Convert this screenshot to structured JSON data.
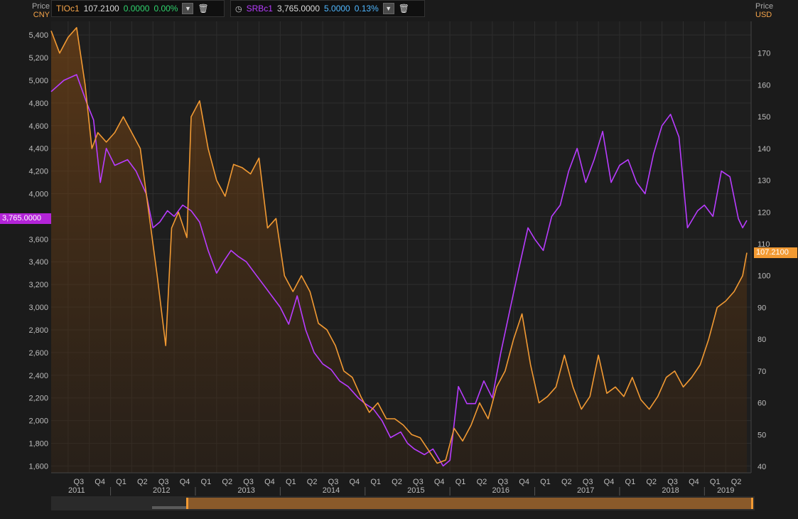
{
  "legend": [
    {
      "name": "TIOc1",
      "price": "107.2100",
      "change": "0.0000",
      "pct": "0.00%",
      "color": "#f7a54a",
      "change_color": "#2fd36e"
    },
    {
      "name": "SRBc1",
      "price": "3,765.0000",
      "change": "5.0000",
      "pct": "0.13%",
      "color": "#b83cff",
      "change_color": "#4fb7ff"
    }
  ],
  "axis_headers": {
    "left": {
      "title": "Price",
      "unit": "CNY"
    },
    "right": {
      "title": "Price",
      "unit": "USD"
    }
  },
  "last_tags": {
    "left": "3,765.0000",
    "right": "107.2100"
  },
  "colors": {
    "background": "#1b1b1b",
    "srb": "#b83cff",
    "tio": "#f29a33",
    "grid": "#2e2e2e"
  },
  "chart_data": {
    "type": "line",
    "title": "",
    "x_ticks": {
      "quarters": [
        "Q3",
        "Q4",
        "Q1",
        "Q2",
        "Q3",
        "Q4",
        "Q1",
        "Q2",
        "Q3",
        "Q4",
        "Q1",
        "Q2",
        "Q3",
        "Q4",
        "Q1",
        "Q2",
        "Q3",
        "Q4",
        "Q1",
        "Q2",
        "Q3",
        "Q4",
        "Q1",
        "Q2",
        "Q3",
        "Q4",
        "Q1",
        "Q2",
        "Q3",
        "Q4",
        "Q1",
        "Q2"
      ],
      "quarter_dates": [
        2011.5,
        2011.75,
        2012.0,
        2012.25,
        2012.5,
        2012.75,
        2013.0,
        2013.25,
        2013.5,
        2013.75,
        2014.0,
        2014.25,
        2014.5,
        2014.75,
        2015.0,
        2015.25,
        2015.5,
        2015.75,
        2016.0,
        2016.25,
        2016.5,
        2016.75,
        2017.0,
        2017.25,
        2017.5,
        2017.75,
        2018.0,
        2018.25,
        2018.5,
        2018.75,
        2019.0,
        2019.25
      ],
      "years": [
        "2011",
        "2012",
        "2013",
        "2014",
        "2015",
        "2016",
        "2017",
        "2018",
        "2019"
      ],
      "year_dates": [
        2011.6,
        2012.6,
        2013.6,
        2014.6,
        2015.6,
        2016.6,
        2017.6,
        2018.6,
        2019.25
      ]
    },
    "x_range": [
      2011.3,
      2019.55
    ],
    "y_left": {
      "unit": "CNY",
      "range": [
        1540,
        5520
      ],
      "ticks": [
        "1,600",
        "1,800",
        "2,000",
        "2,200",
        "2,400",
        "2,600",
        "2,800",
        "3,000",
        "3,200",
        "3,400",
        "3,600",
        "3,800",
        "4,000",
        "4,200",
        "4,400",
        "4,600",
        "4,800",
        "5,000",
        "5,200",
        "5,400"
      ]
    },
    "y_right": {
      "unit": "USD",
      "range": [
        38,
        180
      ],
      "ticks": [
        "40",
        "50",
        "60",
        "70",
        "80",
        "90",
        "100",
        "110",
        "120",
        "130",
        "140",
        "150",
        "160",
        "170"
      ]
    },
    "grid": true,
    "series": [
      {
        "name": "SRBc1",
        "axis": "left",
        "color": "#b83cff",
        "x": [
          2011.3,
          2011.45,
          2011.6,
          2011.72,
          2011.8,
          2011.88,
          2011.95,
          2012.05,
          2012.2,
          2012.3,
          2012.42,
          2012.5,
          2012.58,
          2012.67,
          2012.75,
          2012.85,
          2012.95,
          2013.05,
          2013.15,
          2013.25,
          2013.33,
          2013.42,
          2013.5,
          2013.6,
          2013.7,
          2013.8,
          2013.9,
          2014.0,
          2014.1,
          2014.2,
          2014.3,
          2014.4,
          2014.5,
          2014.6,
          2014.7,
          2014.8,
          2014.92,
          2015.0,
          2015.1,
          2015.2,
          2015.3,
          2015.42,
          2015.5,
          2015.58,
          2015.7,
          2015.8,
          2015.92,
          2016.0,
          2016.1,
          2016.2,
          2016.3,
          2016.4,
          2016.5,
          2016.6,
          2016.7,
          2016.8,
          2016.92,
          2017.0,
          2017.1,
          2017.2,
          2017.3,
          2017.4,
          2017.5,
          2017.6,
          2017.7,
          2017.8,
          2017.9,
          2018.0,
          2018.1,
          2018.2,
          2018.3,
          2018.4,
          2018.5,
          2018.6,
          2018.7,
          2018.8,
          2018.92,
          2019.0,
          2019.1,
          2019.2,
          2019.3,
          2019.4,
          2019.45,
          2019.5
        ],
        "y": [
          4900,
          5000,
          5050,
          4800,
          4650,
          4100,
          4400,
          4250,
          4300,
          4200,
          4000,
          3700,
          3750,
          3850,
          3800,
          3900,
          3850,
          3750,
          3500,
          3300,
          3400,
          3500,
          3450,
          3400,
          3300,
          3200,
          3100,
          3000,
          2850,
          3100,
          2800,
          2600,
          2500,
          2450,
          2350,
          2300,
          2200,
          2150,
          2100,
          2000,
          1850,
          1900,
          1800,
          1750,
          1700,
          1750,
          1600,
          1650,
          2300,
          2150,
          2150,
          2350,
          2200,
          2600,
          2950,
          3300,
          3700,
          3600,
          3500,
          3800,
          3900,
          4200,
          4400,
          4100,
          4300,
          4550,
          4100,
          4250,
          4300,
          4100,
          4000,
          4350,
          4600,
          4700,
          4500,
          3700,
          3850,
          3900,
          3800,
          4200,
          4150,
          3780,
          3700,
          3765
        ]
      },
      {
        "name": "TIOc1",
        "axis": "right",
        "color": "#f29a33",
        "x": [
          2011.3,
          2011.4,
          2011.5,
          2011.6,
          2011.7,
          2011.78,
          2011.85,
          2011.95,
          2012.05,
          2012.15,
          2012.25,
          2012.35,
          2012.45,
          2012.55,
          2012.65,
          2012.72,
          2012.8,
          2012.9,
          2012.95,
          2013.05,
          2013.15,
          2013.25,
          2013.35,
          2013.45,
          2013.55,
          2013.65,
          2013.75,
          2013.85,
          2013.95,
          2014.05,
          2014.15,
          2014.25,
          2014.35,
          2014.45,
          2014.55,
          2014.65,
          2014.75,
          2014.85,
          2014.95,
          2015.05,
          2015.15,
          2015.25,
          2015.35,
          2015.45,
          2015.55,
          2015.65,
          2015.75,
          2015.85,
          2015.95,
          2016.05,
          2016.15,
          2016.25,
          2016.35,
          2016.45,
          2016.55,
          2016.65,
          2016.75,
          2016.85,
          2016.95,
          2017.05,
          2017.15,
          2017.25,
          2017.35,
          2017.45,
          2017.55,
          2017.65,
          2017.75,
          2017.85,
          2017.95,
          2018.05,
          2018.15,
          2018.25,
          2018.35,
          2018.45,
          2018.55,
          2018.65,
          2018.75,
          2018.85,
          2018.95,
          2019.05,
          2019.15,
          2019.25,
          2019.35,
          2019.45,
          2019.5
        ],
        "y": [
          177,
          170,
          175,
          178,
          160,
          140,
          145,
          142,
          145,
          150,
          145,
          140,
          120,
          100,
          78,
          115,
          120,
          112,
          150,
          155,
          140,
          130,
          125,
          135,
          134,
          132,
          137,
          115,
          118,
          100,
          95,
          100,
          95,
          85,
          83,
          78,
          70,
          68,
          62,
          57,
          60,
          55,
          55,
          53,
          50,
          49,
          45,
          41,
          42,
          52,
          48,
          53,
          60,
          55,
          65,
          70,
          80,
          88,
          72,
          60,
          62,
          65,
          75,
          65,
          58,
          62,
          75,
          63,
          65,
          62,
          68,
          61,
          58,
          62,
          68,
          70,
          65,
          68,
          72,
          80,
          90,
          92,
          95,
          100,
          107.21
        ]
      }
    ]
  }
}
